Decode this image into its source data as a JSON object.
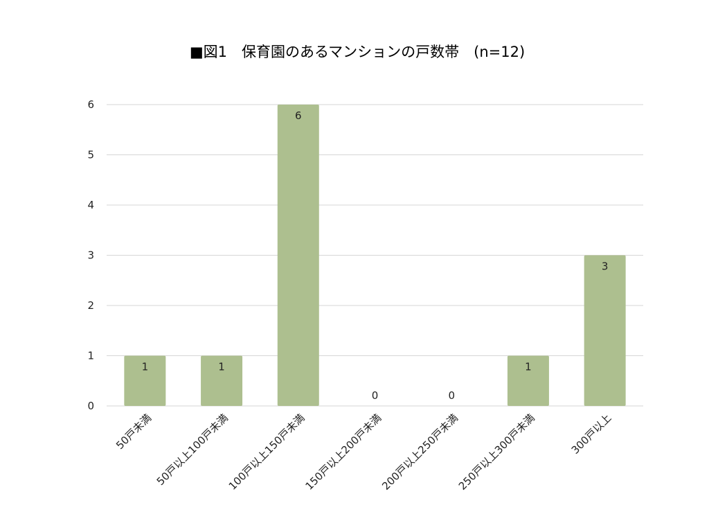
{
  "chart_data": {
    "type": "bar",
    "title": "■図1　保育園のあるマンションの戸数帯　(n=12)",
    "categories": [
      "50戸未満",
      "50戸以上100戸未満",
      "100戸以上150戸未満",
      "150戸以上200戸未満",
      "200戸以上250戸未満",
      "250戸以上300戸未満",
      "300戸以上"
    ],
    "values": [
      1,
      1,
      6,
      0,
      0,
      1,
      3
    ],
    "data_labels": [
      "1",
      "1",
      "6",
      "0",
      "0",
      "1",
      "3"
    ],
    "y_ticks": [
      "0",
      "1",
      "2",
      "3",
      "4",
      "5",
      "6"
    ],
    "ylim": [
      0,
      6
    ],
    "xlabel": "",
    "ylabel": "",
    "grid": true,
    "legend": "none",
    "colors": {
      "bar": "#adbf8f",
      "grid": "#d6d6d6"
    }
  }
}
